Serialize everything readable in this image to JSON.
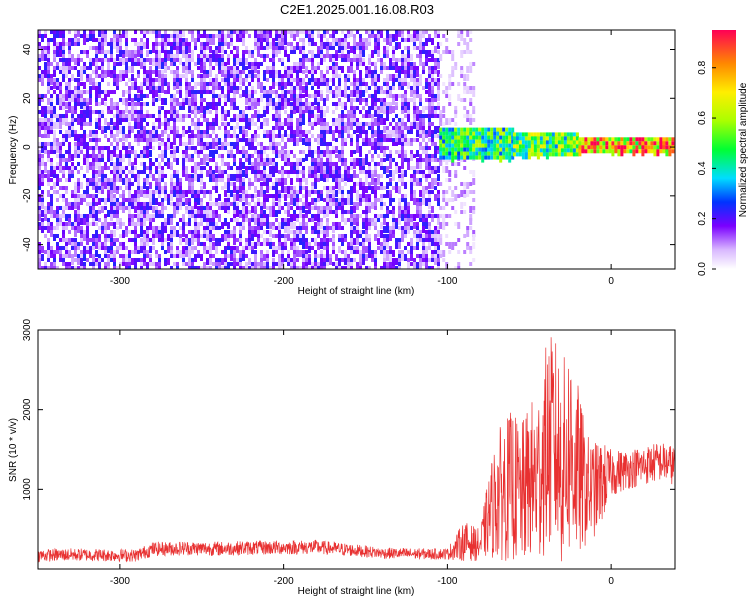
{
  "title": "C2E1.2025.001.16.08.R03",
  "chart_data": [
    {
      "type": "heatmap",
      "xlabel": "Height of straight line (km)",
      "ylabel": "Frequency (Hz)",
      "xlim": [
        -350,
        39
      ],
      "ylim": [
        -50,
        48
      ],
      "x_ticks": [
        -300,
        -200,
        -100,
        0
      ],
      "y_ticks": [
        -40,
        -20,
        0,
        20,
        40
      ],
      "colorbar": {
        "label": "Normalized spectral amplitude",
        "range": [
          0,
          0.95
        ],
        "ticks": [
          0.0,
          0.2,
          0.4,
          0.6,
          0.8
        ]
      },
      "regions": [
        {
          "x": [
            -350,
            -105
          ],
          "freq": [
            -50,
            48
          ],
          "level": 0.15
        },
        {
          "x": [
            -105,
            -84
          ],
          "freq": [
            -50,
            48
          ],
          "level": 0.08
        },
        {
          "x": [
            -105,
            -60
          ],
          "freq": [
            -4,
            8
          ],
          "level": 0.45
        },
        {
          "x": [
            -60,
            -20
          ],
          "freq": [
            -3,
            6
          ],
          "level": 0.5
        },
        {
          "x": [
            -20,
            39
          ],
          "freq": [
            -2,
            4
          ],
          "level": 0.75
        }
      ]
    },
    {
      "type": "line",
      "xlabel": "Height of straight line (km)",
      "ylabel": "SNR (10 * v/v)",
      "xlim": [
        -350,
        39
      ],
      "ylim": [
        0,
        3000
      ],
      "x_ticks": [
        -300,
        -200,
        -100,
        0
      ],
      "y_ticks": [
        1000,
        2000,
        3000
      ],
      "series": [
        {
          "color": "#e83030",
          "x": [
            -350,
            -330,
            -310,
            -290,
            -280,
            -260,
            -240,
            -220,
            -200,
            -180,
            -160,
            -140,
            -120,
            -100,
            -90,
            -80,
            -75,
            -70,
            -65,
            -60,
            -55,
            -50,
            -45,
            -40,
            -35,
            -30,
            -25,
            -20,
            -15,
            -10,
            -5,
            0,
            10,
            20,
            30,
            39
          ],
          "y": [
            170,
            180,
            175,
            170,
            250,
            260,
            255,
            265,
            270,
            275,
            240,
            200,
            190,
            190,
            350,
            300,
            650,
            900,
            1000,
            1050,
            900,
            1100,
            1100,
            1500,
            1600,
            1300,
            1500,
            1200,
            1000,
            1000,
            1100,
            1200,
            1250,
            1300,
            1350,
            1300
          ],
          "spread": [
            80,
            80,
            80,
            80,
            90,
            90,
            90,
            90,
            90,
            90,
            80,
            70,
            70,
            70,
            250,
            200,
            500,
            800,
            900,
            950,
            900,
            1000,
            1100,
            1300,
            1400,
            1300,
            1400,
            1100,
            700,
            600,
            500,
            300,
            250,
            250,
            250,
            250
          ]
        }
      ]
    }
  ]
}
